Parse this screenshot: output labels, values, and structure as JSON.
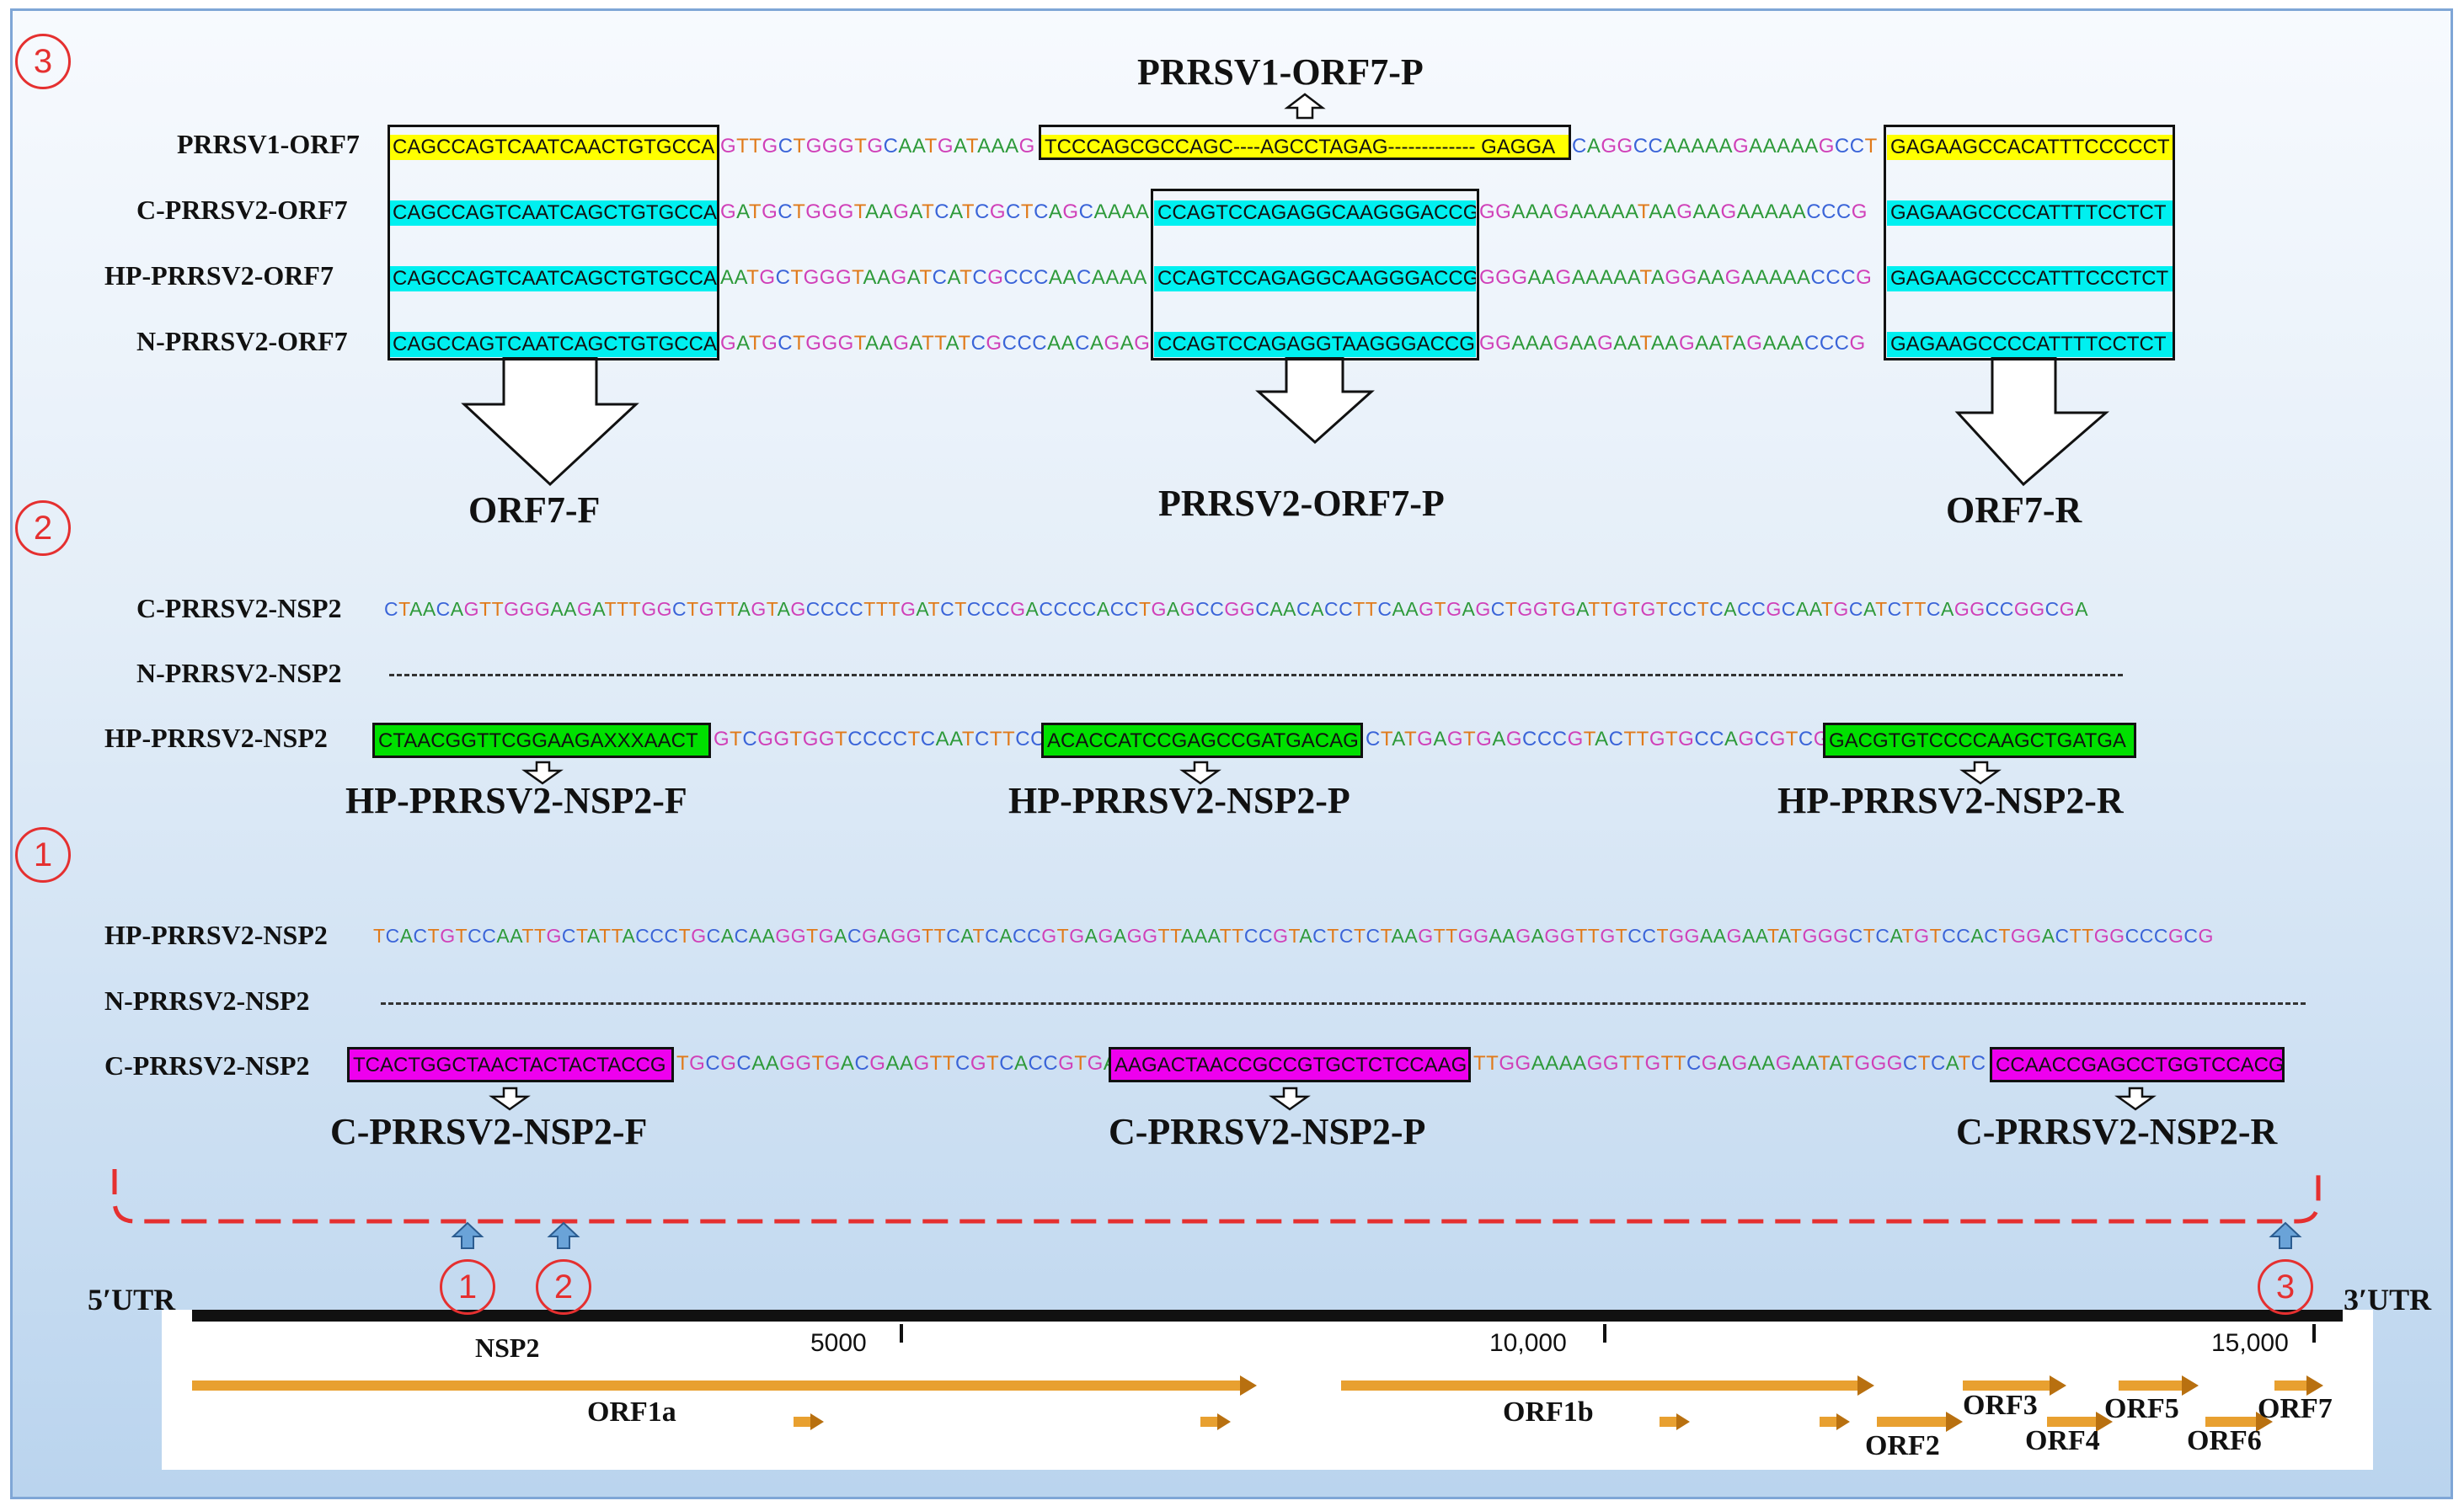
{
  "markers": {
    "m1": "1",
    "m2": "2",
    "m3": "3"
  },
  "orf7": {
    "title_top": "PRRSV1-ORF7-P",
    "labels": [
      "PRRSV1-ORF7",
      "C-PRRSV2-ORF7",
      "HP-PRRSV2-ORF7",
      "N-PRRSV2-ORF7"
    ],
    "f_seqs": [
      "CAGCCAGTCAATCAACTGTGCCA",
      "CAGCCAGTCAATCAGCTGTGCCA",
      "CAGCCAGTCAATCAGCTGTGCCA",
      "CAGCCAGTCAATCAGCTGTGCCA"
    ],
    "mid1": [
      "GTTGCTGGGTGCAATGATAAAG",
      "GATGCTGGGTAAGATCATCGCTCAGCAAAA",
      "AATGCTGGGTAAGATCATCGCCCAACAAAA",
      "GATGCTGGGTAAGATTATCGCCCAACAGAG"
    ],
    "p1_seq": "TCCCAGCGCCAGC----AGCCTAGAG------------- GAGGA",
    "p2_seqs": [
      "",
      "CCAGTCCAGAGGCAAGGGACCG",
      "CCAGTCCAGAGGCAAGGGACCG",
      "CCAGTCCAGAGGTAAGGGACCG"
    ],
    "mid2": [
      "CAGGCCAAAAAGAAAAAGCCT",
      "GGAAAGAAAAATAAGAAGAAAAACCCG",
      "GGGAAGAAAAATAGGAAGAAAAACCCG",
      "GGAAAGAAGAATAAGAATAGAAACCCG"
    ],
    "r_seqs": [
      "GAGAAGCCACATTTCCCCCT",
      "GAGAAGCCCCATTTTCCTCT",
      "GAGAAGCCCCATTTCCCTCT",
      "GAGAAGCCCCATTTTCCTCT"
    ],
    "primer_f": "ORF7-F",
    "primer_p": "PRRSV2-ORF7-P",
    "primer_r": "ORF7-R"
  },
  "hp_nsp2": {
    "label_c": "C-PRRSV2-NSP2",
    "seq_c": "CTAACAGTTGGGAAGATTTGGCTGTTAGTAGCCCCTTTGATCTCCCGACCCCACCTGAGCCGGCAACACCTTCAAGTGAGCTGGTGATTGTGTCCTCACCGCAATGCATCTTCAGGCCGGCGA",
    "label_n": "N-PRRSV2-NSP2",
    "label_hp": "HP-PRRSV2-NSP2",
    "f_seq": "CTAACGGTTCGGAAGAXXXAACT",
    "mid1": "GTCGGTGGTCCCCTCAATCTTCCG",
    "p_seq": "ACACCATCCGAGCCGATGACAG",
    "mid2": "CTATGAGTGAGCCCGTACTTGTGCCAGCGTCGG",
    "r_seq": "GACGTGTCCCCAAGCTGATGA",
    "primer_f": "HP-PRRSV2-NSP2-F",
    "primer_p": "HP-PRRSV2-NSP2-P",
    "primer_r": "HP-PRRSV2-NSP2-R"
  },
  "c_nsp2": {
    "label_hp": "HP-PRRSV2-NSP2",
    "seq_hp": "TCACTGTCCAATTGCTATTACCCTGCACAAGGTGACGAGGTTCATCACCGTGAGAGGTTAAATTCCGTACTCTCTAAGTTGGAAGAGGTTGTCCTGGAAGAATATGGGCTCATGTCCACTGGACTTGGCCCGCG",
    "label_n": "N-PRRSV2-NSP2",
    "label_c": "C-PRRSV2-NSP2",
    "f_seq": "TCACTGGCTAACTACTACTACCG",
    "mid1": "TGCGCAAGGTGACGAAGTTCGTCACCGTGA",
    "p_seq": "AAGACTAACCGCCGTGCTCTCCAAG",
    "mid2": "TTGGAAAAGGTTGTTCGAGAAGAATATGGGCTCATC",
    "r_seq": "CCAACCGAGCCTGGTCCACG",
    "primer_f": "C-PRRSV2-NSP2-F",
    "primer_p": "C-PRRSV2-NSP2-P",
    "primer_r": "C-PRRSV2-NSP2-R"
  },
  "genome": {
    "utr5": "5′UTR",
    "utr3": "3′UTR",
    "nsp2": "NSP2",
    "ticks": [
      "5000",
      "10,000",
      "15,000"
    ],
    "orfs": [
      "ORF1a",
      "ORF1b",
      "ORF2",
      "ORF3",
      "ORF4",
      "ORF5",
      "ORF6",
      "ORF7"
    ]
  },
  "colors": {
    "yellow": "#ffff00",
    "cyan": "#00f0f0",
    "green": "#00e000",
    "magenta": "#ee00ee",
    "orange": "#e8a030",
    "red": "#e53030",
    "blue": "#6aa3d8"
  }
}
